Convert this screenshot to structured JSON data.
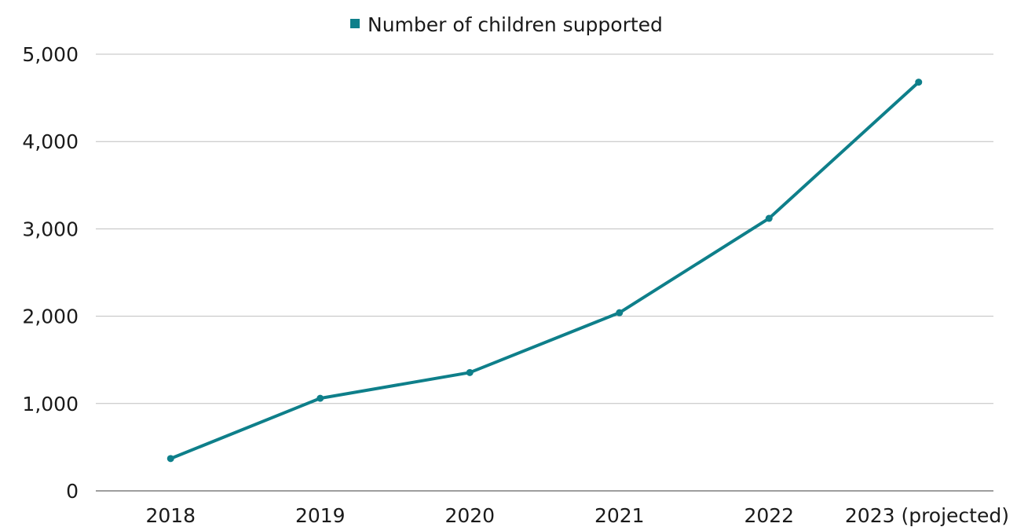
{
  "chart_data": {
    "type": "line",
    "categories": [
      "2018",
      "2019",
      "2020",
      "2021",
      "2022",
      "2023 (projected)"
    ],
    "series": [
      {
        "name": "Number of children supported",
        "values": [
          370,
          1060,
          1355,
          2040,
          3120,
          4680
        ],
        "color": "#0e7f8a"
      }
    ],
    "ylim": [
      0,
      5000
    ],
    "yticks": [
      0,
      1000,
      2000,
      3000,
      4000,
      5000
    ],
    "ytick_labels": [
      "0",
      "1,000",
      "2,000",
      "3,000",
      "4,000",
      "5,000"
    ],
    "grid": true,
    "legend": {
      "position": "top",
      "label": "Number of children supported"
    },
    "colors": {
      "line": "#0e7f8a",
      "grid": "#bfbfbf",
      "axis": "#7f7f7f"
    }
  }
}
